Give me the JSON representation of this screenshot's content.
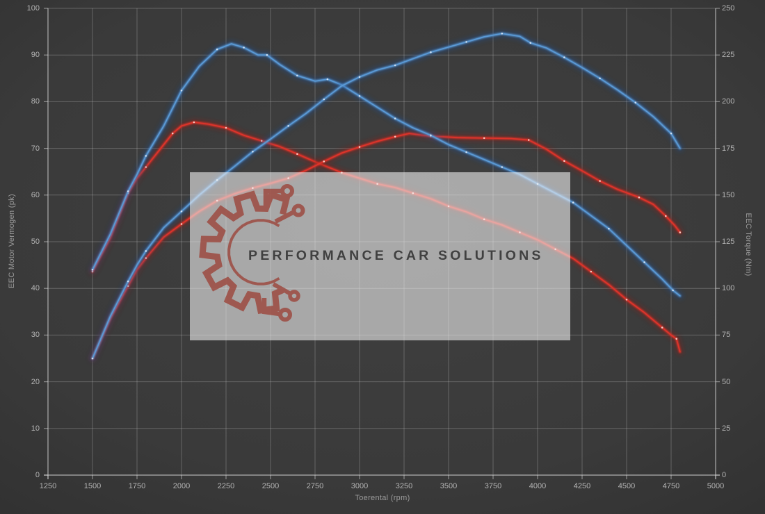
{
  "watermark": {
    "text": "PERFORMANCE CAR SOLUTIONS",
    "logo_color": "#9d4b41"
  },
  "axes": {
    "x_title": "Toerental (rpm)",
    "y_left_title": "EEC Motor Vermogen (pk)",
    "y_right_title": "EEC Torque (Nm)"
  },
  "chart_data": {
    "type": "line",
    "title": "",
    "xlabel": "Toerental (rpm)",
    "ylabel_left": "EEC Motor Vermogen (pk)",
    "ylabel_right": "EEC Torque (Nm)",
    "x_range": [
      1250,
      5000
    ],
    "y_left_range": [
      0,
      100
    ],
    "y_right_range": [
      0,
      250
    ],
    "x_ticks": [
      1250,
      1500,
      1750,
      2000,
      2250,
      2500,
      2750,
      3000,
      3250,
      3500,
      3750,
      4000,
      4250,
      4500,
      4750,
      5000
    ],
    "y_left_ticks": [
      0,
      10,
      20,
      30,
      40,
      50,
      60,
      70,
      80,
      90,
      100
    ],
    "y_right_ticks": [
      0,
      25,
      50,
      75,
      100,
      125,
      150,
      175,
      200,
      225,
      250
    ],
    "grid": true,
    "legend": "none",
    "series": [
      {
        "name": "torque-original-red",
        "axis": "right",
        "unit": "Nm",
        "color": "#df342a",
        "glow": "#8e1b15",
        "dot": "#ffd8d0",
        "points": [
          [
            1500,
            109
          ],
          [
            1600,
            127
          ],
          [
            1700,
            151
          ],
          [
            1750,
            159
          ],
          [
            1800,
            165
          ],
          [
            1900,
            177
          ],
          [
            1950,
            183
          ],
          [
            2000,
            187
          ],
          [
            2070,
            189
          ],
          [
            2150,
            188
          ],
          [
            2250,
            186
          ],
          [
            2350,
            182
          ],
          [
            2450,
            179
          ],
          [
            2550,
            176
          ],
          [
            2650,
            172
          ],
          [
            2770,
            167
          ],
          [
            2900,
            162
          ],
          [
            3000,
            159
          ],
          [
            3100,
            156
          ],
          [
            3200,
            154
          ],
          [
            3300,
            151
          ],
          [
            3400,
            148
          ],
          [
            3500,
            144
          ],
          [
            3600,
            141
          ],
          [
            3700,
            137
          ],
          [
            3800,
            134
          ],
          [
            3900,
            130
          ],
          [
            4000,
            126
          ],
          [
            4100,
            121
          ],
          [
            4200,
            116
          ],
          [
            4300,
            109
          ],
          [
            4400,
            102
          ],
          [
            4500,
            94
          ],
          [
            4600,
            87
          ],
          [
            4700,
            79
          ],
          [
            4750,
            75
          ],
          [
            4780,
            73
          ],
          [
            4800,
            66
          ]
        ]
      },
      {
        "name": "power-original-red",
        "axis": "left",
        "unit": "pk",
        "color": "#df342a",
        "glow": "#8e1b15",
        "dot": "#ffd8d0",
        "points": [
          [
            1500,
            25
          ],
          [
            1600,
            33.5
          ],
          [
            1700,
            40.5
          ],
          [
            1750,
            44
          ],
          [
            1800,
            46.5
          ],
          [
            1900,
            51
          ],
          [
            2000,
            53.8
          ],
          [
            2100,
            56.5
          ],
          [
            2200,
            58.8
          ],
          [
            2300,
            60.3
          ],
          [
            2400,
            61.5
          ],
          [
            2500,
            62.5
          ],
          [
            2600,
            63.6
          ],
          [
            2700,
            65.3
          ],
          [
            2800,
            67.2
          ],
          [
            2900,
            69
          ],
          [
            3000,
            70.3
          ],
          [
            3100,
            71.5
          ],
          [
            3200,
            72.5
          ],
          [
            3280,
            73.2
          ],
          [
            3400,
            72.6
          ],
          [
            3550,
            72.3
          ],
          [
            3700,
            72.2
          ],
          [
            3850,
            72.1
          ],
          [
            3950,
            71.8
          ],
          [
            4050,
            69.8
          ],
          [
            4150,
            67.3
          ],
          [
            4250,
            65.2
          ],
          [
            4350,
            63
          ],
          [
            4450,
            61.2
          ],
          [
            4570,
            59.5
          ],
          [
            4650,
            58
          ],
          [
            4720,
            55.5
          ],
          [
            4770,
            53.5
          ],
          [
            4800,
            52
          ]
        ]
      },
      {
        "name": "torque-tuned-blue",
        "axis": "right",
        "unit": "Nm",
        "color": "#5b9ad6",
        "glow": "#1c4f96",
        "dot": "#d8e8f8",
        "points": [
          [
            1500,
            110
          ],
          [
            1600,
            129
          ],
          [
            1700,
            152
          ],
          [
            1750,
            161
          ],
          [
            1800,
            171
          ],
          [
            1900,
            187
          ],
          [
            2000,
            206
          ],
          [
            2100,
            219
          ],
          [
            2200,
            228
          ],
          [
            2280,
            231
          ],
          [
            2350,
            229
          ],
          [
            2430,
            225
          ],
          [
            2480,
            225
          ],
          [
            2550,
            220
          ],
          [
            2650,
            214
          ],
          [
            2750,
            211
          ],
          [
            2820,
            212
          ],
          [
            2900,
            209
          ],
          [
            3000,
            203
          ],
          [
            3100,
            197
          ],
          [
            3200,
            191
          ],
          [
            3300,
            186
          ],
          [
            3400,
            182
          ],
          [
            3500,
            177
          ],
          [
            3600,
            173
          ],
          [
            3700,
            169
          ],
          [
            3800,
            165
          ],
          [
            3900,
            161
          ],
          [
            4000,
            156
          ],
          [
            4100,
            151
          ],
          [
            4200,
            146
          ],
          [
            4300,
            139
          ],
          [
            4400,
            132
          ],
          [
            4500,
            123
          ],
          [
            4600,
            114
          ],
          [
            4700,
            105
          ],
          [
            4760,
            99
          ],
          [
            4800,
            96
          ]
        ]
      },
      {
        "name": "power-tuned-blue",
        "axis": "left",
        "unit": "pk",
        "color": "#5b9ad6",
        "glow": "#1c4f96",
        "dot": "#d8e8f8",
        "points": [
          [
            1500,
            25
          ],
          [
            1600,
            34
          ],
          [
            1700,
            41.5
          ],
          [
            1750,
            45
          ],
          [
            1800,
            48
          ],
          [
            1900,
            53
          ],
          [
            2000,
            56.5
          ],
          [
            2100,
            60
          ],
          [
            2200,
            63.2
          ],
          [
            2300,
            66.2
          ],
          [
            2400,
            69.3
          ],
          [
            2500,
            72
          ],
          [
            2600,
            74.8
          ],
          [
            2700,
            77.5
          ],
          [
            2800,
            80.5
          ],
          [
            2900,
            83.4
          ],
          [
            3000,
            85.3
          ],
          [
            3100,
            86.8
          ],
          [
            3200,
            87.8
          ],
          [
            3300,
            89.2
          ],
          [
            3400,
            90.6
          ],
          [
            3500,
            91.7
          ],
          [
            3600,
            92.8
          ],
          [
            3700,
            93.9
          ],
          [
            3800,
            94.6
          ],
          [
            3900,
            94
          ],
          [
            3960,
            92.6
          ],
          [
            4050,
            91.5
          ],
          [
            4150,
            89.5
          ],
          [
            4250,
            87.3
          ],
          [
            4350,
            85
          ],
          [
            4450,
            82.5
          ],
          [
            4550,
            79.8
          ],
          [
            4650,
            76.8
          ],
          [
            4750,
            73.2
          ],
          [
            4800,
            70
          ]
        ]
      }
    ]
  }
}
